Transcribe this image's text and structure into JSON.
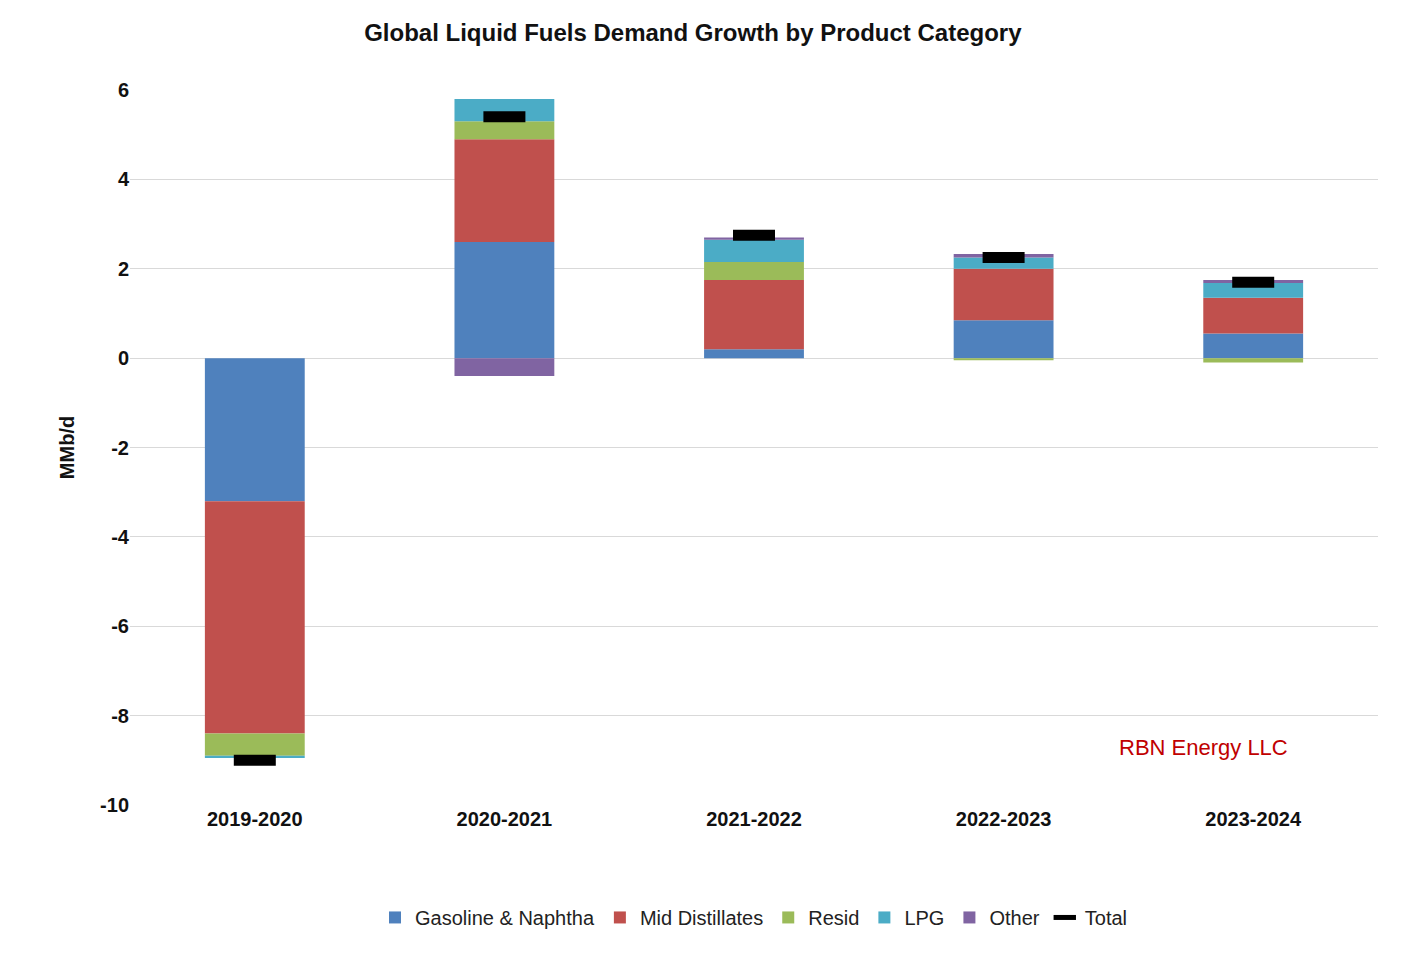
{
  "chart_data": {
    "type": "bar",
    "title": "Global Liquid Fuels Demand Growth by Product Category",
    "y_label": "MMb/d",
    "categories": [
      "2019-2020",
      "2020-2021",
      "2021-2022",
      "2022-2023",
      "2023-2024"
    ],
    "stacked": true,
    "grid": true,
    "legend": "bottom",
    "ylim": [
      -10,
      6
    ],
    "yticks": [
      -10,
      -8,
      -6,
      -4,
      -2,
      0,
      2,
      4,
      6
    ],
    "annotations": [
      "RBN Energy LLC"
    ],
    "series": [
      {
        "name": "Gasoline & Naphtha",
        "color": "#4F81BD",
        "values": [
          -3.2,
          2.6,
          0.2,
          0.85,
          0.55
        ]
      },
      {
        "name": "Mid Distillates",
        "color": "#C0504D",
        "values": [
          -5.2,
          2.3,
          1.55,
          1.15,
          0.8
        ]
      },
      {
        "name": "Resid",
        "color": "#9BBB59",
        "values": [
          -0.5,
          0.4,
          0.4,
          -0.05,
          -0.1
        ]
      },
      {
        "name": "LPG",
        "color": "#4BACC6",
        "values": [
          -0.05,
          0.5,
          0.5,
          0.25,
          0.33
        ]
      },
      {
        "name": "Other",
        "color": "#8064A2",
        "values": [
          0,
          -0.4,
          0.05,
          0.08,
          0.07
        ]
      },
      {
        "name": "Total",
        "type": "scatter",
        "marker": "dash",
        "color": "#000000",
        "values": [
          -9.0,
          5.4,
          2.75,
          2.25,
          1.7
        ]
      }
    ]
  }
}
